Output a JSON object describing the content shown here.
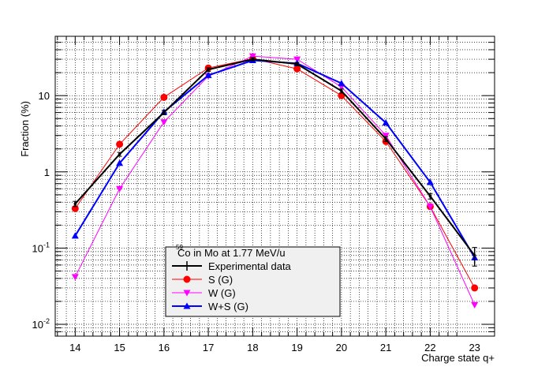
{
  "chart_data": {
    "type": "line",
    "xlabel": "Charge state q+",
    "ylabel": "Fraction (%)",
    "yscale": "log",
    "ylim": [
      0.007,
      60
    ],
    "xlim": [
      13.55,
      23.45
    ],
    "grid": true,
    "x": [
      14,
      15,
      16,
      17,
      18,
      19,
      20,
      21,
      22,
      23
    ],
    "x_tick_labels": [
      "14",
      "15",
      "16",
      "17",
      "18",
      "19",
      "20",
      "21",
      "22",
      "23"
    ],
    "y_tick_labels": [
      {
        "value": 0.01,
        "base": "10",
        "exp": "-2"
      },
      {
        "value": 0.1,
        "base": "10",
        "exp": "-1"
      },
      {
        "value": 1,
        "text": "1"
      },
      {
        "value": 10,
        "text": "10"
      }
    ],
    "legend": {
      "title_sup": "59",
      "title": "Co in Mo at 1.77 MeV/u",
      "position": "bottom-center"
    },
    "series": [
      {
        "name": "Experimental data",
        "color": "#000000",
        "marker": "errorbar",
        "values": [
          0.38,
          1.7,
          6.0,
          22.0,
          30.0,
          26.0,
          11.5,
          2.7,
          0.48,
          0.08
        ],
        "err": [
          0.03,
          0.1,
          0.4,
          1.2,
          1.5,
          1.3,
          0.7,
          0.2,
          0.04,
          0.022
        ]
      },
      {
        "name": "S (G)",
        "color": "#ff0000",
        "marker": "circle",
        "values": [
          0.33,
          2.3,
          9.5,
          23.0,
          30.5,
          22.5,
          10.0,
          2.5,
          0.35,
          0.03
        ]
      },
      {
        "name": "W (G)",
        "color": "#ff00ff",
        "marker": "triangle-down",
        "values": [
          0.042,
          0.6,
          4.5,
          18.0,
          33.0,
          30.0,
          13.0,
          3.0,
          0.35,
          0.018
        ]
      },
      {
        "name": "W+S (G)",
        "color": "#0000ff",
        "marker": "triangle-up",
        "values": [
          0.145,
          1.3,
          6.1,
          18.5,
          29.0,
          26.5,
          14.5,
          4.4,
          0.73,
          0.075
        ]
      }
    ]
  }
}
